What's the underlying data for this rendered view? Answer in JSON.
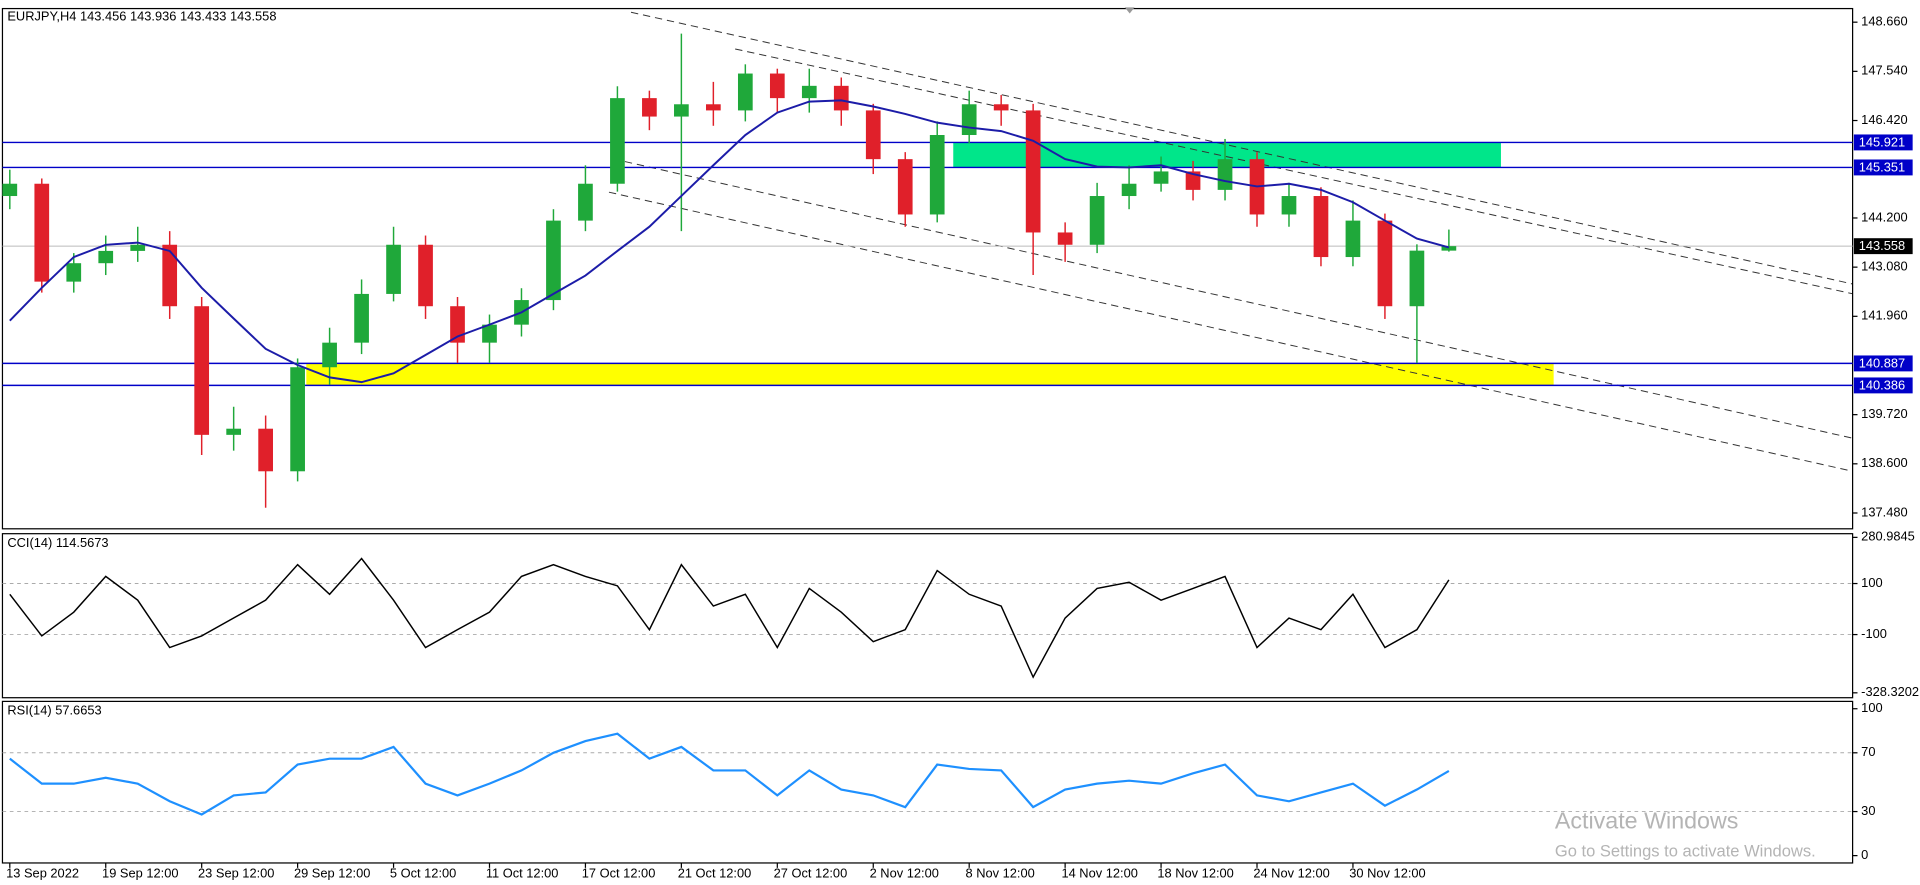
{
  "chart_data": [
    {
      "type": "candlestick",
      "title": "EURJPY,H4 143.456 143.936 143.433 143.558",
      "categories": [
        "13 Sep 2022",
        null,
        null,
        "19 Sep 12:00",
        null,
        null,
        "23 Sep 12:00",
        null,
        null,
        "29 Sep 12:00",
        null,
        null,
        "5 Oct 12:00",
        null,
        null,
        "11 Oct 12:00",
        null,
        null,
        "17 Oct 12:00",
        null,
        null,
        "21 Oct 12:00",
        null,
        null,
        "27 Oct 12:00",
        null,
        null,
        "2 Nov 12:00",
        null,
        null,
        "8 Nov 12:00",
        null,
        null,
        "14 Nov 12:00",
        null,
        null,
        "18 Nov 12:00",
        null,
        null,
        "24 Nov 12:00",
        null,
        null,
        "30 Nov 12:00",
        null,
        null,
        null
      ],
      "candles": [
        [
          144.7,
          145.3,
          144.4,
          144.98
        ],
        [
          144.98,
          145.1,
          142.5,
          142.75
        ],
        [
          142.75,
          143.4,
          142.5,
          143.17
        ],
        [
          143.17,
          143.8,
          142.9,
          143.45
        ],
        [
          143.45,
          144.0,
          143.2,
          143.59
        ],
        [
          143.59,
          143.9,
          141.9,
          142.19
        ],
        [
          142.19,
          142.4,
          138.8,
          139.26
        ],
        [
          139.26,
          139.9,
          138.9,
          139.4
        ],
        [
          139.4,
          139.7,
          137.6,
          138.43
        ],
        [
          138.43,
          141.0,
          138.2,
          140.8
        ],
        [
          140.8,
          141.7,
          140.4,
          141.36
        ],
        [
          141.36,
          142.8,
          141.1,
          142.47
        ],
        [
          142.47,
          144.0,
          142.3,
          143.59
        ],
        [
          143.59,
          143.8,
          141.9,
          142.19
        ],
        [
          142.19,
          142.4,
          140.9,
          141.36
        ],
        [
          141.36,
          142.0,
          140.9,
          141.77
        ],
        [
          141.77,
          142.6,
          141.5,
          142.33
        ],
        [
          142.33,
          144.4,
          142.1,
          144.14
        ],
        [
          144.14,
          145.4,
          143.9,
          144.98
        ],
        [
          144.98,
          147.2,
          144.8,
          146.93
        ],
        [
          146.93,
          147.1,
          146.2,
          146.51
        ],
        [
          146.51,
          148.4,
          143.9,
          146.79
        ],
        [
          146.79,
          147.3,
          146.3,
          146.65
        ],
        [
          146.65,
          147.7,
          146.4,
          147.49
        ],
        [
          147.49,
          147.6,
          146.6,
          146.93
        ],
        [
          146.93,
          147.6,
          146.6,
          147.21
        ],
        [
          147.21,
          147.4,
          146.3,
          146.65
        ],
        [
          146.65,
          146.8,
          145.2,
          145.54
        ],
        [
          145.54,
          145.7,
          144.0,
          144.28
        ],
        [
          144.28,
          146.4,
          144.1,
          146.09
        ],
        [
          146.09,
          147.1,
          145.9,
          146.79
        ],
        [
          146.79,
          147.0,
          146.3,
          146.65
        ],
        [
          146.65,
          146.8,
          142.9,
          143.87
        ],
        [
          143.87,
          144.1,
          143.2,
          143.59
        ],
        [
          143.59,
          145.0,
          143.4,
          144.7
        ],
        [
          144.7,
          145.4,
          144.4,
          144.98
        ],
        [
          144.98,
          145.6,
          144.8,
          145.26
        ],
        [
          145.26,
          145.5,
          144.6,
          144.84
        ],
        [
          144.84,
          146.0,
          144.6,
          145.54
        ],
        [
          145.54,
          145.7,
          144.0,
          144.28
        ],
        [
          144.28,
          145.0,
          144.0,
          144.7
        ],
        [
          144.7,
          144.9,
          143.1,
          143.31
        ],
        [
          143.31,
          144.6,
          143.1,
          144.14
        ],
        [
          144.14,
          144.3,
          141.9,
          142.19
        ],
        [
          142.19,
          143.6,
          140.9,
          143.456
        ],
        [
          143.456,
          143.936,
          143.433,
          143.558
        ]
      ],
      "up_color": "#1fa83a",
      "down_color": "#e0202a",
      "ma": {
        "color": "#1c1ca8",
        "values": [
          141.86,
          142.61,
          143.31,
          143.59,
          143.64,
          143.45,
          142.61,
          141.91,
          141.22,
          140.85,
          140.57,
          140.46,
          140.66,
          141.08,
          141.5,
          141.77,
          142.05,
          142.47,
          142.89,
          143.45,
          144.0,
          144.7,
          145.4,
          146.09,
          146.6,
          146.85,
          146.88,
          146.74,
          146.57,
          146.37,
          146.26,
          146.18,
          145.96,
          145.54,
          145.37,
          145.35,
          145.4,
          145.2,
          145.04,
          144.92,
          144.98,
          144.84,
          144.56,
          144.14,
          143.73,
          143.53
        ]
      },
      "levels": [
        145.921,
        145.351,
        140.887,
        140.386
      ],
      "level_color": "#0000c8",
      "zone_colors": [
        "#00e68a",
        "#ffff00"
      ],
      "ylim": [
        137.12,
        148.97
      ],
      "yticks": [
        {
          "value": 148.66,
          "label": "148.660"
        },
        {
          "value": 147.54,
          "label": "147.540"
        },
        {
          "value": 146.42,
          "label": "146.420"
        },
        {
          "value": 144.2,
          "label": "144.200"
        },
        {
          "value": 143.08,
          "label": "143.080"
        },
        {
          "value": 141.96,
          "label": "141.960"
        },
        {
          "value": 139.72,
          "label": "139.720"
        },
        {
          "value": 138.6,
          "label": "138.600"
        },
        {
          "value": 137.48,
          "label": "137.480"
        }
      ]
    },
    {
      "type": "line",
      "title": "CCI(14) 114.5673",
      "color": "#000000",
      "values": [
        58,
        -105,
        -12,
        128,
        35,
        -151,
        -105,
        -35,
        35,
        174,
        58,
        198,
        35,
        -151,
        -81,
        -12,
        128,
        174,
        128,
        91,
        -81,
        174,
        12,
        58,
        -151,
        81,
        -12,
        -128,
        -81,
        151,
        58,
        12,
        -267,
        -35,
        81,
        105,
        35,
        81,
        128,
        -151,
        -35,
        -81,
        58,
        -151,
        -81,
        114.5673
      ],
      "ylim": [
        -328.3202,
        280.9845
      ],
      "yticks": [
        280.9845,
        100,
        -100,
        -328.3202
      ]
    },
    {
      "type": "line",
      "title": "RSI(14) 57.6653",
      "color": "#1e90ff",
      "values": [
        66,
        49,
        49,
        53,
        49,
        37,
        28,
        41,
        43,
        62,
        66,
        66,
        74,
        49,
        41,
        49,
        58,
        70,
        78,
        83,
        66,
        74,
        58,
        58,
        41,
        58,
        45,
        41,
        33,
        62,
        59,
        58,
        33,
        45,
        49,
        51,
        49,
        56,
        62,
        41,
        37,
        43,
        49,
        34,
        45,
        57.6653
      ],
      "ylim": [
        0,
        100
      ],
      "yticks": [
        100,
        70,
        30,
        0
      ]
    }
  ],
  "watermark": {
    "title": "Activate Windows",
    "subtitle": "Go to Settings to activate Windows."
  }
}
